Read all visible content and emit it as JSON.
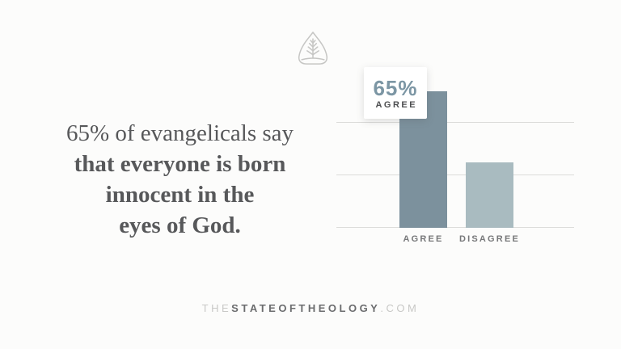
{
  "page": {
    "background": "#fcfcfb"
  },
  "logo": {
    "name": "ligonier-leaf",
    "stroke_color": "#c6c6c4"
  },
  "headline": {
    "color": "#57585a",
    "lines": [
      {
        "text": "65% of evangelicals say",
        "bold": false
      },
      {
        "text": "that everyone is born",
        "bold": true
      },
      {
        "text": "innocent in the",
        "bold": true
      },
      {
        "text": "eyes of God.",
        "bold": true
      }
    ]
  },
  "chart_data": {
    "type": "bar",
    "title": "65% of evangelicals say that everyone is born innocent in the eyes of God.",
    "categories": [
      "AGREE",
      "DISAGREE"
    ],
    "values": [
      65,
      31
    ],
    "bar_colors": [
      "#7C919D",
      "#A9BBC0"
    ],
    "ylim": [
      0,
      100
    ],
    "gridline_values": [
      0,
      25,
      50
    ],
    "grid": "horizontal lines only, no axis tick labels",
    "callout": {
      "value": "65%",
      "label": "AGREE",
      "value_color": "#7C96A4",
      "label_color": "#4d4e50"
    }
  },
  "footer": {
    "segments": [
      {
        "text": "THE",
        "muted": true
      },
      {
        "text": "STATEOFTHEOLOGY",
        "muted": false
      },
      {
        "text": ".COM",
        "muted": true
      }
    ]
  }
}
